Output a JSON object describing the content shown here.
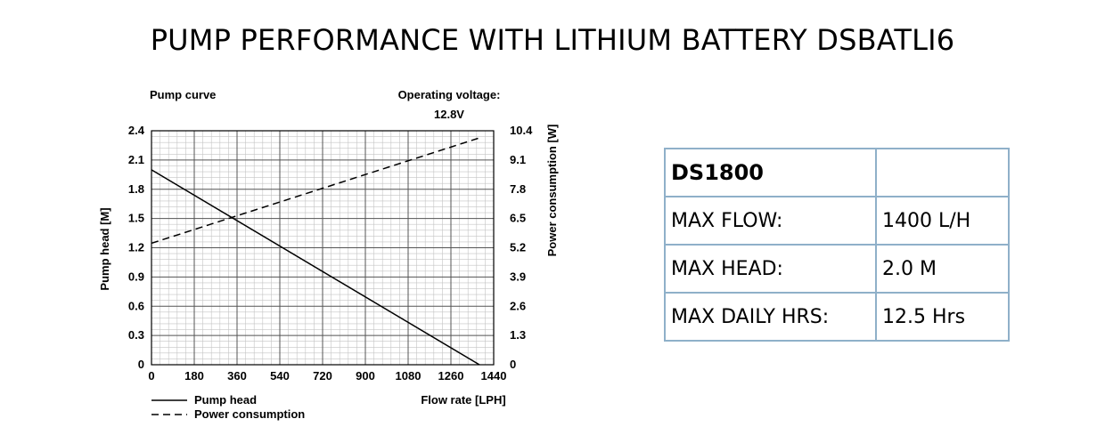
{
  "title": "PUMP PERFORMANCE WITH LITHIUM BATTERY DSBATLI6",
  "chart_data": {
    "type": "line",
    "title": "Pump curve",
    "annotation": "Operating voltage: 12.8V",
    "annotation_lines": [
      "Operating voltage:",
      "12.8V"
    ],
    "xlabel": "Flow rate [LPH]",
    "ylabel": "Pump head [M]",
    "y2label": "Power consumption [W]",
    "xlim": [
      0,
      1440
    ],
    "ylim": [
      0,
      2.4
    ],
    "y2lim": [
      0,
      10.4
    ],
    "xticks": [
      0,
      180,
      360,
      540,
      720,
      900,
      1080,
      1260,
      1440
    ],
    "yticks": [
      0,
      0.3,
      0.6,
      0.9,
      1.2,
      1.5,
      1.8,
      2.1,
      2.4
    ],
    "y2ticks": [
      0,
      1.3,
      2.6,
      3.9,
      5.2,
      6.5,
      7.8,
      9.1,
      10.4
    ],
    "xtick_labels": [
      "0",
      "180",
      "360",
      "540",
      "720",
      "900",
      "1080",
      "1260",
      "1440"
    ],
    "ytick_labels": [
      "0",
      "0.3",
      "0.6",
      "0.9",
      "1.2",
      "1.5",
      "1.8",
      "2.1",
      "2.4"
    ],
    "y2tick_labels": [
      "0",
      "1.3",
      "2.6",
      "3.9",
      "5.2",
      "6.5",
      "7.8",
      "9.1",
      "10.4"
    ],
    "grid": true,
    "legend_position": "bottom-left",
    "series": [
      {
        "name": "Pump head",
        "axis": "left",
        "style": "solid",
        "x": [
          0,
          1380
        ],
        "y": [
          2.0,
          0
        ]
      },
      {
        "name": "Power consumption",
        "axis": "right",
        "style": "dashed",
        "x": [
          0,
          1385
        ],
        "y": [
          5.4,
          10.1
        ]
      }
    ]
  },
  "spec_table": {
    "model": "DS1800",
    "rows": [
      {
        "label": "MAX FLOW:",
        "value": "1400 L/H"
      },
      {
        "label": "MAX HEAD:",
        "value": "2.0 M"
      },
      {
        "label": "MAX DAILY HRS:",
        "value": "12.5 Hrs"
      }
    ],
    "border_color": "#8fb0c9"
  }
}
